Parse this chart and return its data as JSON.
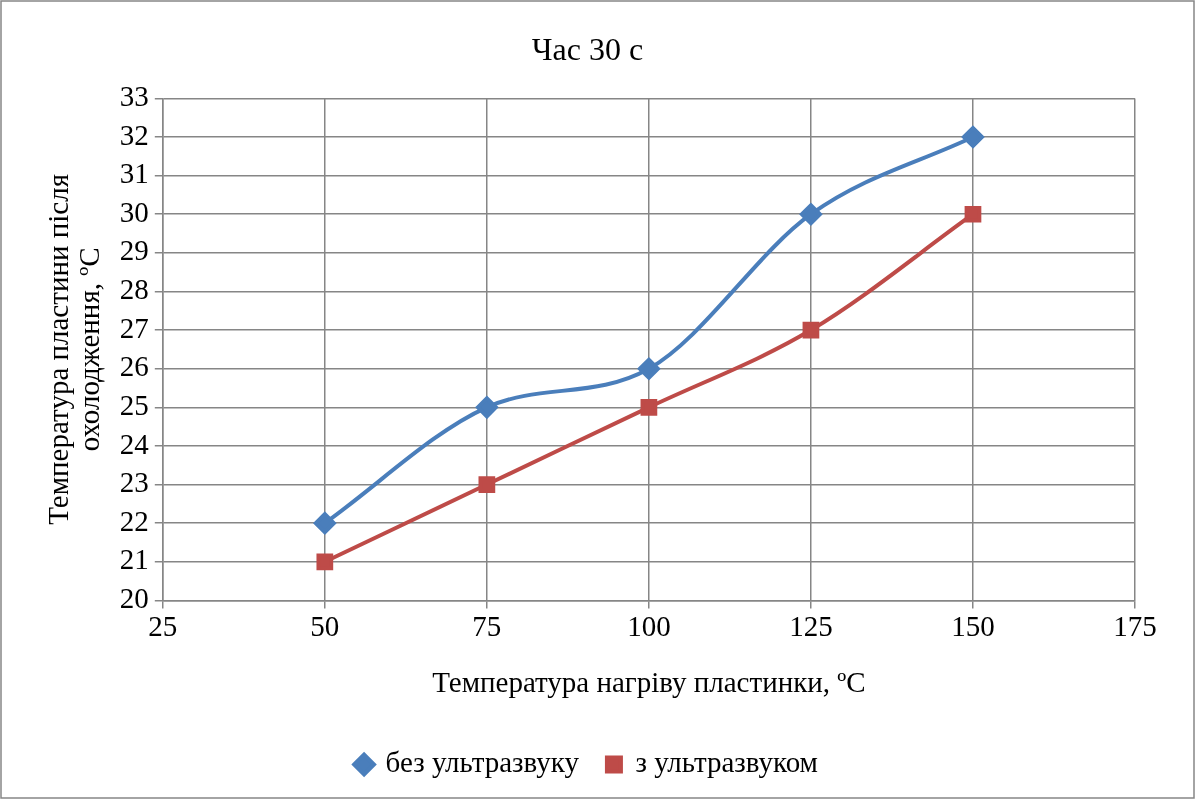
{
  "chart_data": {
    "type": "line",
    "title": "Час 30 с",
    "xlabel": "Температура нагріву пластинки, ºC",
    "ylabel": "Температура пластини після охолодження, ºC",
    "x": [
      50,
      75,
      100,
      125,
      150
    ],
    "series": [
      {
        "name": "без ультразвуку",
        "color": "#4a7ebb",
        "marker": "diamond",
        "values": [
          22,
          25,
          26,
          30,
          32
        ]
      },
      {
        "name": "з ультразвуком",
        "color": "#be4b48",
        "marker": "square",
        "values": [
          21,
          23,
          25,
          27,
          30
        ]
      }
    ],
    "xlim": [
      25,
      175
    ],
    "xticks": [
      25,
      50,
      75,
      100,
      125,
      150,
      175
    ],
    "ylim": [
      20,
      33
    ],
    "yticks": [
      20,
      21,
      22,
      23,
      24,
      25,
      26,
      27,
      28,
      29,
      30,
      31,
      32,
      33
    ],
    "grid": true,
    "legend": "bottom",
    "line_style": "solid"
  }
}
